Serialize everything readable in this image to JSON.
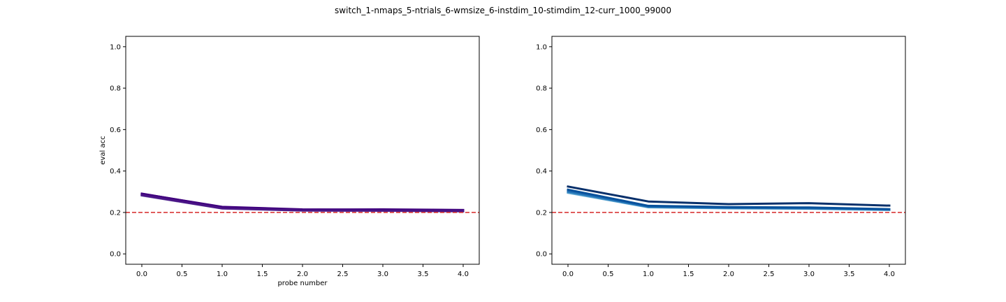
{
  "suptitle": "switch_1-nmaps_5-ntrials_6-wmsize_6-instdim_10-stimdim_12-curr_1000_99000",
  "chart_data": [
    {
      "type": "line",
      "title": "",
      "xlabel": "probe number",
      "ylabel": "eval acc",
      "xlim": [
        -0.2,
        4.2
      ],
      "ylim": [
        -0.05,
        1.05
      ],
      "xticks": [
        0.0,
        0.5,
        1.0,
        1.5,
        2.0,
        2.5,
        3.0,
        3.5,
        4.0
      ],
      "xtick_labels": [
        "0.0",
        "0.5",
        "1.0",
        "1.5",
        "2.0",
        "2.5",
        "3.0",
        "3.5",
        "4.0"
      ],
      "yticks": [
        0.0,
        0.2,
        0.4,
        0.6,
        0.8,
        1.0
      ],
      "ytick_labels": [
        "0.0",
        "0.2",
        "0.4",
        "0.6",
        "0.8",
        "1.0"
      ],
      "grid": false,
      "x": [
        0,
        1,
        2,
        3,
        4
      ],
      "series": [
        {
          "color": "#3f007d",
          "values": [
            0.29,
            0.227,
            0.215,
            0.213,
            0.21
          ]
        },
        {
          "color": "#54278f",
          "values": [
            0.286,
            0.222,
            0.211,
            0.21,
            0.207
          ]
        },
        {
          "color": "#6a51a3",
          "values": [
            0.282,
            0.219,
            0.209,
            0.208,
            0.205
          ]
        },
        {
          "color": "#3f007d",
          "values": [
            0.291,
            0.225,
            0.213,
            0.215,
            0.212
          ]
        },
        {
          "color": "#4a1486",
          "values": [
            0.284,
            0.22,
            0.21,
            0.209,
            0.208
          ]
        }
      ],
      "reference_line": {
        "y": 0.2,
        "color": "#d62728",
        "style": "dashed"
      }
    },
    {
      "type": "line",
      "title": "",
      "xlabel": "",
      "ylabel": "",
      "xlim": [
        -0.2,
        4.2
      ],
      "ylim": [
        -0.05,
        1.05
      ],
      "xticks": [
        0.0,
        0.5,
        1.0,
        1.5,
        2.0,
        2.5,
        3.0,
        3.5,
        4.0
      ],
      "xtick_labels": [
        "0.0",
        "0.5",
        "1.0",
        "1.5",
        "2.0",
        "2.5",
        "3.0",
        "3.5",
        "4.0"
      ],
      "yticks": [
        0.0,
        0.2,
        0.4,
        0.6,
        0.8,
        1.0
      ],
      "ytick_labels": [
        "0.0",
        "0.2",
        "0.4",
        "0.6",
        "0.8",
        "1.0"
      ],
      "grid": false,
      "x": [
        0,
        1,
        2,
        3,
        4
      ],
      "series": [
        {
          "color": "#6baed6",
          "values": [
            0.295,
            0.225,
            0.22,
            0.218,
            0.212
          ]
        },
        {
          "color": "#4292c6",
          "values": [
            0.298,
            0.226,
            0.221,
            0.219,
            0.213
          ]
        },
        {
          "color": "#2171b5",
          "values": [
            0.302,
            0.228,
            0.223,
            0.22,
            0.214
          ]
        },
        {
          "color": "#08519c",
          "values": [
            0.31,
            0.232,
            0.226,
            0.224,
            0.216
          ]
        },
        {
          "color": "#08306b",
          "values": [
            0.325,
            0.253,
            0.24,
            0.245,
            0.233
          ]
        }
      ],
      "reference_line": {
        "y": 0.2,
        "color": "#d62728",
        "style": "dashed"
      }
    }
  ]
}
